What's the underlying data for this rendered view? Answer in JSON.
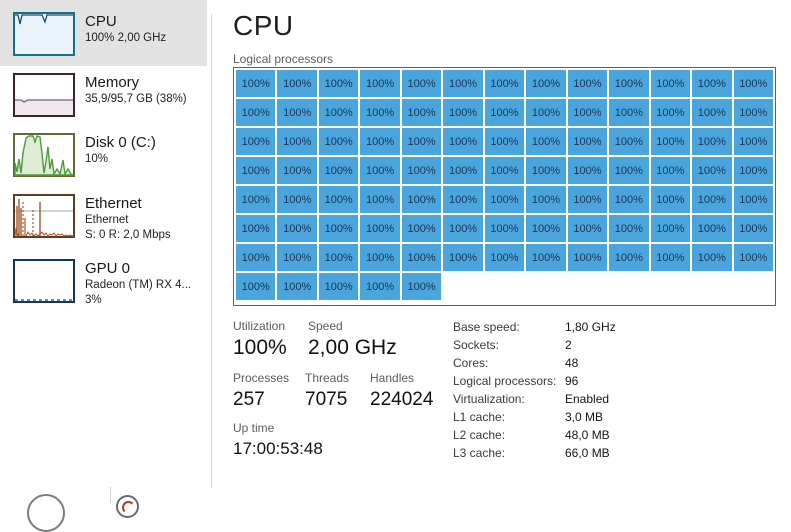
{
  "sidebar": {
    "items": [
      {
        "id": "cpu",
        "title": "CPU",
        "lines": [
          "100% 2,00 GHz"
        ],
        "selected": true
      },
      {
        "id": "memory",
        "title": "Memory",
        "lines": [
          "35,9/95,7 GB (38%)"
        ],
        "selected": false
      },
      {
        "id": "disk",
        "title": "Disk 0 (C:)",
        "lines": [
          "10%"
        ],
        "selected": false
      },
      {
        "id": "ethernet",
        "title": "Ethernet",
        "lines": [
          "Ethernet",
          "S: 0 R: 2,0 Mbps"
        ],
        "selected": false
      },
      {
        "id": "gpu",
        "title": "GPU 0",
        "lines": [
          "Radeon (TM) RX 4...",
          "3%"
        ],
        "selected": false
      }
    ]
  },
  "main": {
    "title": "CPU",
    "grid_label": "Logical processors",
    "grid": {
      "columns": 13,
      "total_cells": 96,
      "cell_label": "100%"
    },
    "stats": {
      "utilization": {
        "label": "Utilization",
        "value": "100%"
      },
      "speed": {
        "label": "Speed",
        "value": "2,00 GHz"
      },
      "processes": {
        "label": "Processes",
        "value": "257"
      },
      "threads": {
        "label": "Threads",
        "value": "7075"
      },
      "handles": {
        "label": "Handles",
        "value": "224024"
      },
      "uptime": {
        "label": "Up time",
        "value": "17:00:53:48"
      }
    },
    "info": [
      {
        "label": "Base speed:",
        "value": "1,80 GHz"
      },
      {
        "label": "Sockets:",
        "value": "2"
      },
      {
        "label": "Cores:",
        "value": "48"
      },
      {
        "label": "Logical processors:",
        "value": "96"
      },
      {
        "label": "Virtualization:",
        "value": "Enabled"
      },
      {
        "label": "L1 cache:",
        "value": "3,0 MB"
      },
      {
        "label": "L2 cache:",
        "value": "48,0 MB"
      },
      {
        "label": "L3 cache:",
        "value": "66,0 MB"
      }
    ]
  },
  "icons": {
    "cpu_thumbnail": "cpu-usage-sparkline",
    "memory_thumbnail": "memory-usage-sparkline",
    "disk_thumbnail": "disk-usage-sparkline",
    "ethernet_thumbnail": "network-usage-sparkline",
    "gpu_thumbnail": "gpu-usage-sparkline",
    "bottom_left": "partial-circle-button",
    "bottom_gauge": "resource-monitor-gauge"
  },
  "colors": {
    "cell_blue": "#4aa5dc",
    "grid_border": "#1e73ae",
    "cell_text": "#1c3557",
    "selected_bg": "#e2e2e2",
    "cpu_accent": "#14708c",
    "memory_accent": "#45202f",
    "disk_accent": "#5e6b33",
    "ethernet_accent": "#5f3b26",
    "gpu_accent": "#14384f"
  }
}
